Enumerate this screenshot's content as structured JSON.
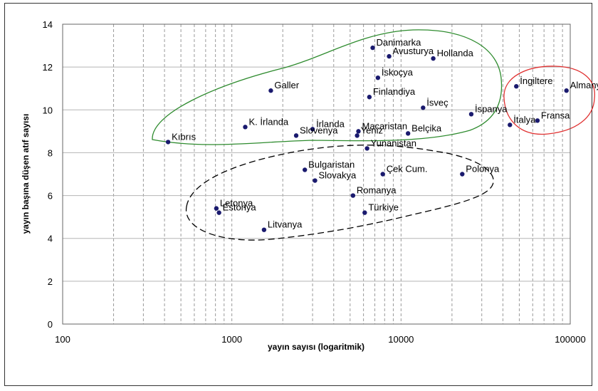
{
  "chart_data": {
    "type": "scatter",
    "xlabel": "yayın sayısı (logaritmik)",
    "ylabel": "yayın başına düşen atıf sayısı",
    "xscale": "log",
    "xlim": [
      100,
      100000
    ],
    "ylim": [
      0,
      14
    ],
    "x_ticks": [
      "100",
      "1000",
      "10000",
      "100000"
    ],
    "y_ticks": [
      "0",
      "2",
      "4",
      "6",
      "8",
      "10",
      "12",
      "14"
    ],
    "grid": "dashed vertical minor log gridlines, solid horizontal gridlines",
    "marker_color": "#1a1a6e",
    "groups": [
      {
        "color": "#2e8b2e",
        "style": "solid",
        "members": [
          "Danimarka",
          "Avusturya",
          "Hollanda",
          "İsveç",
          "İskoçya",
          "Finlandiya",
          "Galler",
          "İspanya",
          "K. İrlanda",
          "İrlanda",
          "Macaristan",
          "Slovenya",
          "Yeniz",
          "Belçika",
          "Kıbrıs"
        ]
      },
      {
        "color": "#000000",
        "style": "dashed",
        "members": [
          "Yunanistan",
          "Bulgaristan",
          "Slovakya",
          "Çek Cum.",
          "Polonya",
          "Romanya",
          "Türkiye",
          "Letonya",
          "Estonya",
          "Litvanya"
        ]
      },
      {
        "color": "#e03030",
        "style": "solid",
        "members": [
          "İngiltere",
          "Almanya",
          "İtalya",
          "Fransa"
        ]
      }
    ],
    "points": [
      {
        "label": "Danimarka",
        "x": 6800,
        "y": 12.9
      },
      {
        "label": "Avusturya",
        "x": 8500,
        "y": 12.5
      },
      {
        "label": "Hollanda",
        "x": 15500,
        "y": 12.4
      },
      {
        "label": "İskoçya",
        "x": 7300,
        "y": 11.5
      },
      {
        "label": "Galler",
        "x": 1700,
        "y": 10.9
      },
      {
        "label": "Finlandiya",
        "x": 6500,
        "y": 10.6
      },
      {
        "label": "İsveç",
        "x": 13500,
        "y": 10.1
      },
      {
        "label": "İspanya",
        "x": 26000,
        "y": 9.8
      },
      {
        "label": "K. İrlanda",
        "x": 1200,
        "y": 9.2
      },
      {
        "label": "İrlanda",
        "x": 3000,
        "y": 9.1
      },
      {
        "label": "Macaristan",
        "x": 5600,
        "y": 9.0
      },
      {
        "label": "Slovenya",
        "x": 2400,
        "y": 8.8
      },
      {
        "label": "Yeniz",
        "x": 5500,
        "y": 8.8
      },
      {
        "label": "Belçika",
        "x": 11000,
        "y": 8.9
      },
      {
        "label": "Kıbrıs",
        "x": 420,
        "y": 8.5
      },
      {
        "label": "Yunanistan",
        "x": 6300,
        "y": 8.2
      },
      {
        "label": "Bulgaristan",
        "x": 2700,
        "y": 7.2
      },
      {
        "label": "Slovakya",
        "x": 3100,
        "y": 6.7
      },
      {
        "label": "Çek Cum.",
        "x": 7800,
        "y": 7.0
      },
      {
        "label": "Polonya",
        "x": 23000,
        "y": 7.0
      },
      {
        "label": "Romanya",
        "x": 5200,
        "y": 6.0
      },
      {
        "label": "Türkiye",
        "x": 6100,
        "y": 5.2
      },
      {
        "label": "Letonya",
        "x": 810,
        "y": 5.4
      },
      {
        "label": "Estonya",
        "x": 840,
        "y": 5.2
      },
      {
        "label": "Litvanya",
        "x": 1550,
        "y": 4.4
      },
      {
        "label": "İngiltere",
        "x": 48000,
        "y": 11.1
      },
      {
        "label": "Almanya",
        "x": 95000,
        "y": 10.9
      },
      {
        "label": "İtalya",
        "x": 44000,
        "y": 9.3
      },
      {
        "label": "Fransa",
        "x": 64000,
        "y": 9.5
      }
    ]
  }
}
